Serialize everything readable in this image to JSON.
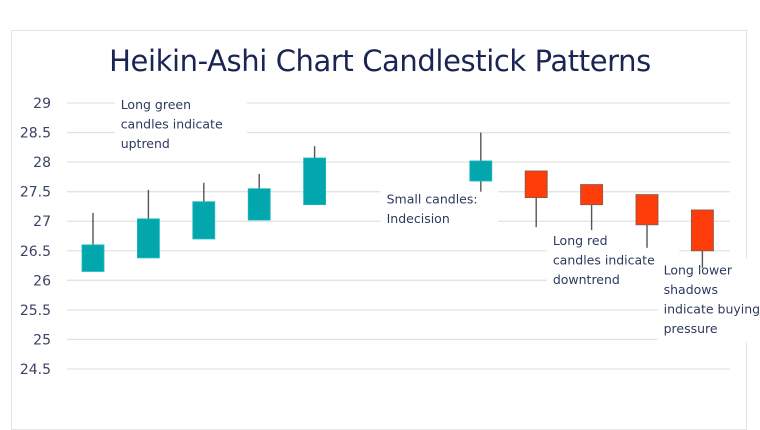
{
  "chart_data": {
    "type": "candlestick",
    "title": "Heikin-Ashi Chart Candlestick Patterns",
    "xlabel": "",
    "ylabel": "",
    "ylim": [
      24.5,
      29
    ],
    "yticks": [
      "29",
      "28.5",
      "28",
      "27.5",
      "27",
      "26.5",
      "26",
      "25.5",
      "25",
      "24.5"
    ],
    "ytick_values": [
      29,
      28.5,
      28,
      27.5,
      27,
      26.5,
      26,
      25.5,
      25,
      24.5
    ],
    "grid": true,
    "colors": {
      "up": "#02a7ae",
      "down": "#ff3d0a",
      "wick": "#555555",
      "grid": "#e3e3e3"
    },
    "candles": [
      {
        "index": 1,
        "open": 26.15,
        "close": 26.6,
        "high": 27.14,
        "low": 26.15,
        "direction": "up"
      },
      {
        "index": 2,
        "open": 26.38,
        "close": 27.04,
        "high": 27.53,
        "low": 26.38,
        "direction": "up"
      },
      {
        "index": 3,
        "open": 26.7,
        "close": 27.33,
        "high": 27.65,
        "low": 26.7,
        "direction": "up"
      },
      {
        "index": 4,
        "open": 27.02,
        "close": 27.55,
        "high": 27.8,
        "low": 27.02,
        "direction": "up"
      },
      {
        "index": 5,
        "open": 27.28,
        "close": 28.07,
        "high": 28.27,
        "low": 27.28,
        "direction": "up"
      },
      {
        "index": 8,
        "open": 27.68,
        "close": 28.02,
        "high": 28.5,
        "low": 27.5,
        "direction": "up"
      },
      {
        "index": 9,
        "open": 27.85,
        "close": 27.4,
        "high": 27.85,
        "low": 26.9,
        "direction": "down"
      },
      {
        "index": 10,
        "open": 27.62,
        "close": 27.28,
        "high": 27.62,
        "low": 26.85,
        "direction": "down"
      },
      {
        "index": 11,
        "open": 27.45,
        "close": 26.94,
        "high": 27.45,
        "low": 26.55,
        "direction": "down"
      },
      {
        "index": 12,
        "open": 27.19,
        "close": 26.5,
        "high": 27.19,
        "low": 26.21,
        "direction": "down"
      }
    ],
    "annotations": [
      {
        "id": "uptrend",
        "lines": [
          "Long green",
          "candles indicate",
          "uptrend"
        ],
        "near_index": 1.5,
        "value": 28.9
      },
      {
        "id": "indecision",
        "lines": [
          "Small candles:",
          "Indecision"
        ],
        "near_index": 6.3,
        "value": 27.3
      },
      {
        "id": "downtrend",
        "lines": [
          "Long red",
          "candles indicate",
          "downtrend"
        ],
        "near_index": 9.3,
        "value": 26.6
      },
      {
        "id": "buying",
        "lines": [
          "Long lower",
          "shadows",
          "indicate buying",
          "pressure"
        ],
        "near_index": 11.3,
        "value": 26.1
      }
    ]
  }
}
